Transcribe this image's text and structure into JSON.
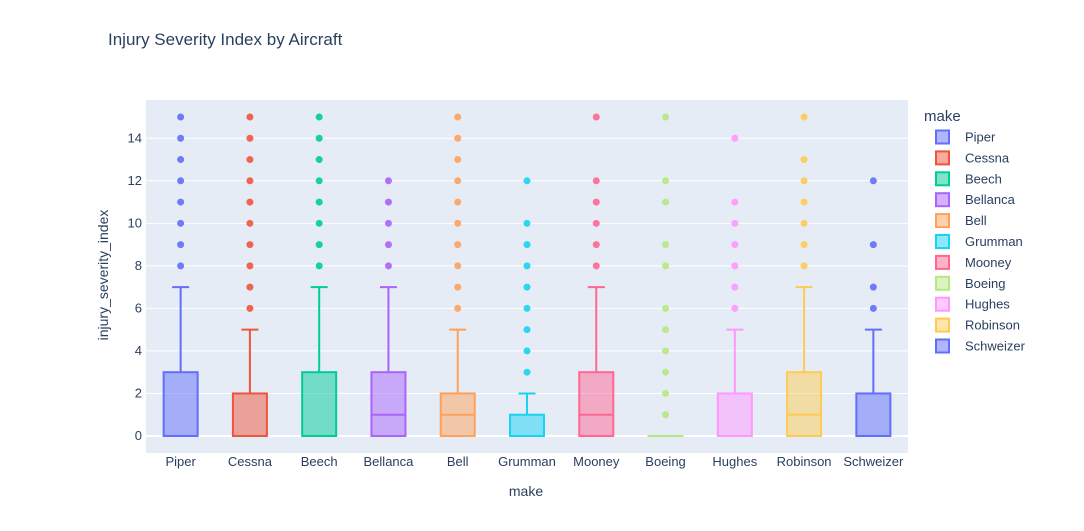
{
  "chart_data": {
    "type": "box",
    "title": "Injury Severity Index by Aircraft",
    "xlabel": "make",
    "ylabel": "injury_severity_index",
    "ylim": [
      -0.8,
      15.8
    ],
    "yticks": [
      0,
      2,
      4,
      6,
      8,
      10,
      12,
      14
    ],
    "grid": true,
    "legend_title": "make",
    "legend_position": "right",
    "categories": [
      "Piper",
      "Cessna",
      "Beech",
      "Bellanca",
      "Bell",
      "Grumman",
      "Mooney",
      "Boeing",
      "Hughes",
      "Robinson",
      "Schweizer"
    ],
    "series": [
      {
        "name": "Piper",
        "color": "#636efa",
        "q1": 0,
        "median": 0,
        "q3": 3,
        "lower_whisker": 0,
        "upper_whisker": 7,
        "outliers": [
          8,
          9,
          10,
          11,
          12,
          13,
          14,
          15
        ]
      },
      {
        "name": "Cessna",
        "color": "#EF553B",
        "q1": 0,
        "median": 0,
        "q3": 2,
        "lower_whisker": 0,
        "upper_whisker": 5,
        "outliers": [
          6,
          7,
          8,
          9,
          10,
          11,
          12,
          13,
          14,
          15
        ]
      },
      {
        "name": "Beech",
        "color": "#00cc96",
        "q1": 0,
        "median": 0,
        "q3": 3,
        "lower_whisker": 0,
        "upper_whisker": 7,
        "outliers": [
          8,
          9,
          10,
          11,
          12,
          13,
          14,
          15
        ]
      },
      {
        "name": "Bellanca",
        "color": "#ab63fa",
        "q1": 0,
        "median": 1,
        "q3": 3,
        "lower_whisker": 0,
        "upper_whisker": 7,
        "outliers": [
          8,
          9,
          10,
          11,
          12
        ]
      },
      {
        "name": "Bell",
        "color": "#FFA15A",
        "q1": 0,
        "median": 1,
        "q3": 2,
        "lower_whisker": 0,
        "upper_whisker": 5,
        "outliers": [
          6,
          7,
          8,
          9,
          10,
          11,
          12,
          13,
          14,
          15
        ]
      },
      {
        "name": "Grumman",
        "color": "#19d3f3",
        "q1": 0,
        "median": 0,
        "q3": 1,
        "lower_whisker": 0,
        "upper_whisker": 2,
        "outliers": [
          3,
          4,
          5,
          6,
          7,
          8,
          9,
          10,
          12
        ]
      },
      {
        "name": "Mooney",
        "color": "#FF6692",
        "q1": 0,
        "median": 1,
        "q3": 3,
        "lower_whisker": 0,
        "upper_whisker": 7,
        "outliers": [
          8,
          9,
          10,
          11,
          12,
          15
        ]
      },
      {
        "name": "Boeing",
        "color": "#B6E880",
        "q1": 0,
        "median": 0,
        "q3": 0,
        "lower_whisker": 0,
        "upper_whisker": 0,
        "outliers": [
          1,
          2,
          3,
          4,
          5,
          6,
          8,
          9,
          11,
          12,
          15
        ]
      },
      {
        "name": "Hughes",
        "color": "#FF97FF",
        "q1": 0,
        "median": 0,
        "q3": 2,
        "lower_whisker": 0,
        "upper_whisker": 5,
        "outliers": [
          6,
          7,
          8,
          9,
          10,
          11,
          14
        ]
      },
      {
        "name": "Robinson",
        "color": "#FECB52",
        "q1": 0,
        "median": 1,
        "q3": 3,
        "lower_whisker": 0,
        "upper_whisker": 7,
        "outliers": [
          8,
          9,
          10,
          11,
          12,
          13,
          15
        ]
      },
      {
        "name": "Schweizer",
        "color": "#636efa",
        "q1": 0,
        "median": 0,
        "q3": 2,
        "lower_whisker": 0,
        "upper_whisker": 5,
        "outliers": [
          6,
          7,
          9,
          12
        ]
      }
    ]
  }
}
